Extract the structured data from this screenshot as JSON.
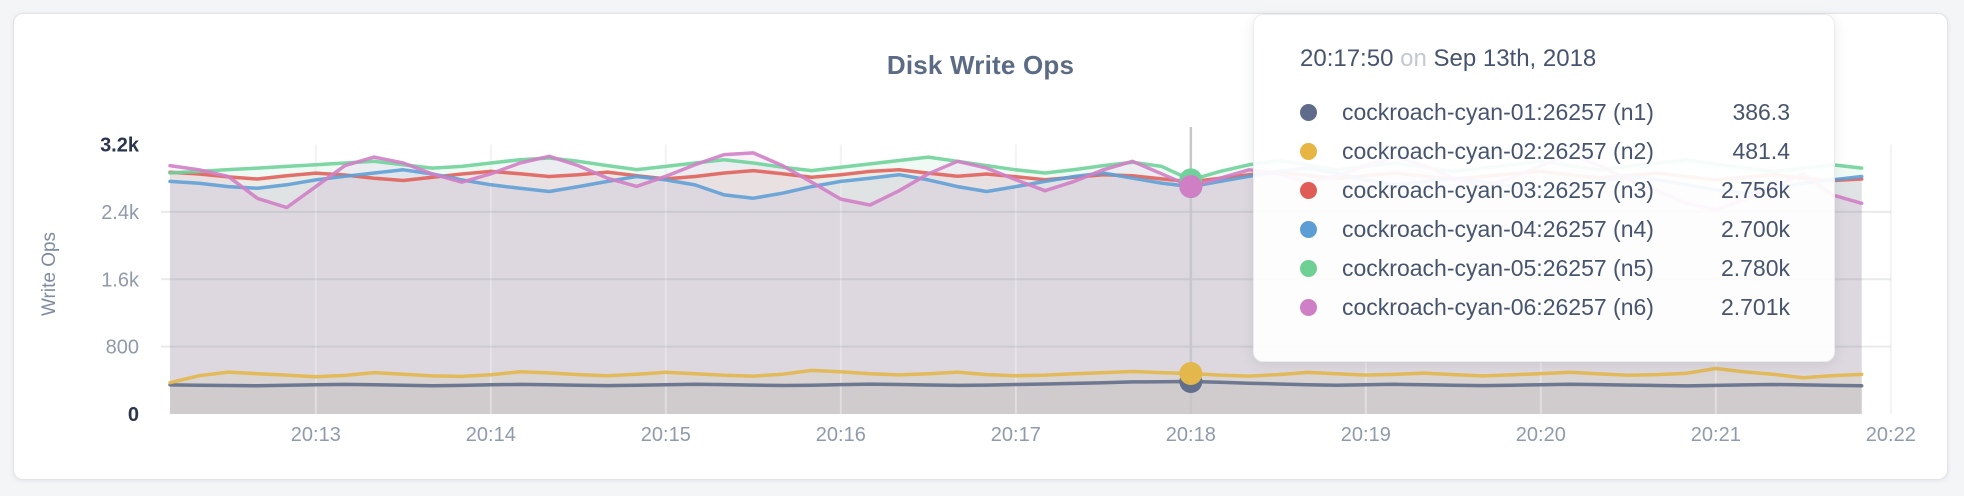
{
  "chart_data": {
    "type": "line",
    "title": "Disk Write Ops",
    "ylabel": "Write Ops",
    "ylim": [
      0,
      3200
    ],
    "grid": true,
    "yticks": [
      {
        "value": 0,
        "label": "0"
      },
      {
        "value": 800,
        "label": "800"
      },
      {
        "value": 1600,
        "label": "1.6k"
      },
      {
        "value": 2400,
        "label": "2.4k"
      },
      {
        "value": 3200,
        "label": "3.2k"
      }
    ],
    "xticks": [
      "20:13",
      "20:14",
      "20:15",
      "20:16",
      "20:17",
      "20:18",
      "20:19",
      "20:20",
      "20:21",
      "20:22"
    ],
    "x_start": "20:12:10",
    "x_step_seconds": 10,
    "hover_index": 35,
    "hover_time": "20:17:50",
    "series": [
      {
        "name": "cockroach-cyan-01:26257 (n1)",
        "color": "#626e8a",
        "values": [
          345,
          342,
          338,
          335,
          341,
          348,
          352,
          347,
          341,
          336,
          340,
          347,
          352,
          348,
          342,
          337,
          341,
          348,
          354,
          349,
          343,
          338,
          342,
          349,
          355,
          350,
          344,
          339,
          343,
          350,
          356,
          363,
          372,
          381,
          384,
          386.3,
          378,
          366,
          356,
          348,
          342,
          347,
          353,
          348,
          342,
          337,
          341,
          348,
          354,
          349,
          343,
          338,
          334,
          339,
          345,
          350,
          345,
          340,
          336
        ]
      },
      {
        "name": "cockroach-cyan-02:26257 (n2)",
        "color": "#e3b74b",
        "values": [
          372,
          455,
          498,
          478,
          462,
          442,
          458,
          492,
          472,
          452,
          446,
          466,
          502,
          488,
          468,
          455,
          472,
          496,
          478,
          460,
          450,
          472,
          518,
          502,
          478,
          464,
          478,
          498,
          468,
          454,
          462,
          478,
          492,
          505,
          492,
          481.4,
          462,
          450,
          468,
          494,
          478,
          462,
          470,
          486,
          468,
          452,
          464,
          480,
          496,
          476,
          460,
          468,
          484,
          540,
          500,
          470,
          430,
          456,
          470
        ]
      },
      {
        "name": "cockroach-cyan-03:26257 (n3)",
        "color": "#e0625c",
        "values": [
          2870,
          2850,
          2815,
          2790,
          2830,
          2860,
          2838,
          2800,
          2772,
          2810,
          2850,
          2880,
          2852,
          2820,
          2842,
          2872,
          2830,
          2792,
          2820,
          2862,
          2890,
          2852,
          2812,
          2842,
          2880,
          2900,
          2860,
          2822,
          2850,
          2818,
          2782,
          2812,
          2842,
          2830,
          2792,
          2756,
          2800,
          2842,
          2872,
          2832,
          2800,
          2830,
          2862,
          2822,
          2790,
          2820,
          2852,
          2880,
          2840,
          2802,
          2832,
          2860,
          2820,
          2782,
          2812,
          2840,
          2800,
          2772,
          2790
        ]
      },
      {
        "name": "cockroach-cyan-04:26257 (n4)",
        "color": "#61a0d6",
        "values": [
          2762,
          2740,
          2700,
          2680,
          2722,
          2780,
          2822,
          2862,
          2900,
          2850,
          2780,
          2722,
          2680,
          2642,
          2700,
          2762,
          2820,
          2780,
          2720,
          2602,
          2562,
          2622,
          2700,
          2762,
          2800,
          2842,
          2780,
          2700,
          2642,
          2700,
          2762,
          2820,
          2862,
          2800,
          2742,
          2700,
          2762,
          2822,
          2880,
          2920,
          2860,
          2780,
          2722,
          2762,
          2800,
          2760,
          2700,
          2662,
          2702,
          2762,
          2820,
          2780,
          2722,
          2662,
          2622,
          2680,
          2740,
          2780,
          2820
        ]
      },
      {
        "name": "cockroach-cyan-05:26257 (n5)",
        "color": "#70d29b",
        "values": [
          2862,
          2880,
          2902,
          2920,
          2940,
          2960,
          2980,
          3000,
          2960,
          2920,
          2940,
          2980,
          3020,
          3040,
          3000,
          2950,
          2902,
          2940,
          2980,
          3020,
          2980,
          2930,
          2890,
          2930,
          2970,
          3010,
          3050,
          3000,
          2950,
          2900,
          2862,
          2902,
          2950,
          2990,
          2940,
          2780,
          2880,
          2960,
          3010,
          2960,
          2900,
          2940,
          2980,
          2930,
          2880,
          2920,
          2960,
          3000,
          2950,
          2900,
          2940,
          2980,
          3020,
          2970,
          2920,
          2880,
          2920,
          2960,
          2920
        ]
      },
      {
        "name": "cockroach-cyan-06:26257 (n6)",
        "color": "#d07fc5",
        "values": [
          2950,
          2900,
          2820,
          2560,
          2452,
          2700,
          2950,
          3050,
          2980,
          2850,
          2752,
          2852,
          2980,
          3060,
          2950,
          2800,
          2702,
          2822,
          2960,
          3080,
          3100,
          2950,
          2752,
          2552,
          2482,
          2652,
          2852,
          3000,
          2920,
          2782,
          2652,
          2762,
          2900,
          3000,
          2852,
          2701,
          2800,
          2900,
          2852,
          2752,
          2822,
          2950,
          3050,
          2952,
          2802,
          2702,
          2802,
          2950,
          3080,
          2950,
          2782,
          2652,
          2502,
          2422,
          2552,
          2702,
          2852,
          2602,
          2502
        ]
      }
    ]
  },
  "tooltip": {
    "time": "20:17:50",
    "on_word": "on",
    "date": "Sep 13th, 2018",
    "rows": [
      {
        "name": "cockroach-cyan-01:26257 (n1)",
        "value": "386.3",
        "color": "#5f6b8a"
      },
      {
        "name": "cockroach-cyan-02:26257 (n2)",
        "value": "481.4",
        "color": "#e6b544"
      },
      {
        "name": "cockroach-cyan-03:26257 (n3)",
        "value": "2.756k",
        "color": "#e05c56"
      },
      {
        "name": "cockroach-cyan-04:26257 (n4)",
        "value": "2.700k",
        "color": "#5c9dd5"
      },
      {
        "name": "cockroach-cyan-05:26257 (n5)",
        "value": "2.780k",
        "color": "#6fd096"
      },
      {
        "name": "cockroach-cyan-06:26257 (n6)",
        "value": "2.701k",
        "color": "#cf7fc6"
      }
    ]
  }
}
